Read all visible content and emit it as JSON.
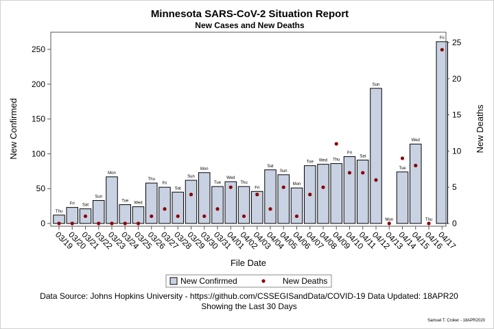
{
  "chart_data": {
    "type": "bar",
    "title": "Minnesota SARS-CoV-2 Situation Report",
    "subtitle": "New Cases and New Deaths",
    "xlabel": "File Date",
    "ylabel": "New Confirmed",
    "y2label": "New Deaths",
    "ylim": [
      0,
      270
    ],
    "y2lim": [
      0,
      27
    ],
    "yticks": [
      0,
      50,
      100,
      150,
      200,
      250
    ],
    "y2ticks": [
      0,
      5,
      10,
      15,
      20,
      25
    ],
    "categories": [
      "03/19",
      "03/20",
      "03/21",
      "03/22",
      "03/23",
      "03/24",
      "03/25",
      "03/26",
      "03/27",
      "03/28",
      "03/29",
      "03/30",
      "03/31",
      "04/01",
      "04/02",
      "04/03",
      "04/04",
      "04/05",
      "04/06",
      "04/07",
      "04/08",
      "04/09",
      "04/10",
      "04/11",
      "04/12",
      "04/13",
      "04/14",
      "04/15",
      "04/16",
      "04/17"
    ],
    "days": [
      "Thu",
      "Fri",
      "Sat",
      "Sun",
      "Mon",
      "Tue",
      "Wed",
      "Thu",
      "Fri",
      "Sat",
      "Sun",
      "Mon",
      "Tue",
      "Wed",
      "Thu",
      "Fri",
      "Sat",
      "Sun",
      "Mon",
      "Tue",
      "Wed",
      "Thu",
      "Fri",
      "Sat",
      "Sun",
      "Mon",
      "Tue",
      "Wed",
      "Thu",
      "Fri"
    ],
    "series": [
      {
        "name": "New Confirmed",
        "type": "bar",
        "axis": "left",
        "color": "#c8d2e3",
        "values": [
          12,
          23,
          21,
          33,
          67,
          27,
          24,
          58,
          52,
          45,
          62,
          73,
          53,
          60,
          53,
          46,
          77,
          70,
          51,
          83,
          85,
          86,
          96,
          91,
          194,
          0,
          74,
          114,
          0,
          261
        ]
      },
      {
        "name": "New Deaths",
        "type": "scatter",
        "axis": "right",
        "color": "#8b0000",
        "values": [
          0,
          0,
          1,
          0,
          0,
          0,
          0,
          1,
          2,
          1,
          4,
          1,
          2,
          5,
          1,
          4,
          2,
          5,
          1,
          4,
          5,
          11,
          7,
          7,
          6,
          0,
          9,
          8,
          0,
          24
        ]
      }
    ],
    "grid": false,
    "legend_position": "bottom"
  },
  "footer": {
    "source": "Data Source: Johns Hopkins University - https://github.com/CSSEGISandData/COVID-19 Data Updated: 18APR20",
    "window": "Showing the Last 30 Days",
    "credit": "Samuel T. Croker - 18APR2020"
  }
}
